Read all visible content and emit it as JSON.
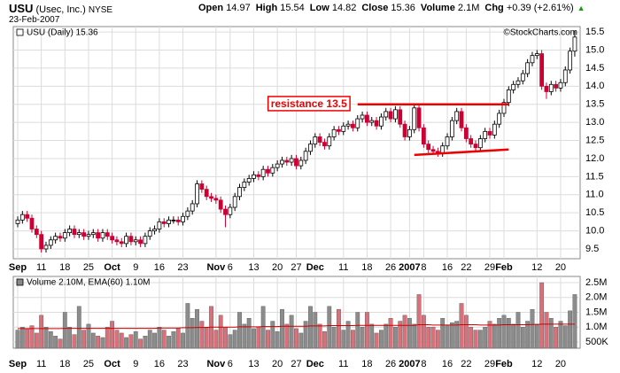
{
  "header": {
    "symbol": "USU",
    "company": "(Usec, Inc.)",
    "exchange": "NYSE",
    "date": "23-Feb-2007",
    "quote": [
      {
        "label": "Open",
        "value": "14.97"
      },
      {
        "label": "High",
        "value": "15.54"
      },
      {
        "label": "Low",
        "value": "14.82"
      },
      {
        "label": "Close",
        "value": "15.36"
      },
      {
        "label": "Volume",
        "value": "2.1M"
      },
      {
        "label": "Chg",
        "value": "+0.39 (+2.61%)"
      }
    ],
    "credit": "©StockCharts.com"
  },
  "chart_data": [
    {
      "type": "candlestick",
      "legend": "USU (Daily) 15.36",
      "up_color": "#000000",
      "down_color": "#cc0033",
      "grid": true,
      "categories": [
        "Sep",
        null,
        null,
        null,
        null,
        "11",
        null,
        null,
        null,
        null,
        "18",
        null,
        null,
        null,
        null,
        "25",
        null,
        null,
        null,
        null,
        "Oct",
        null,
        null,
        null,
        null,
        "9",
        null,
        null,
        null,
        null,
        "16",
        null,
        null,
        null,
        null,
        "23",
        null,
        null,
        null,
        null,
        null,
        null,
        "Nov",
        null,
        null,
        "6",
        null,
        null,
        null,
        null,
        "13",
        null,
        null,
        null,
        null,
        "20",
        null,
        null,
        null,
        "27",
        null,
        null,
        null,
        "Dec",
        null,
        null,
        null,
        null,
        null,
        "11",
        null,
        null,
        null,
        null,
        "18",
        null,
        null,
        null,
        null,
        "26",
        null,
        null,
        null,
        "2007",
        null,
        null,
        "8",
        null,
        null,
        null,
        null,
        "16",
        null,
        null,
        null,
        "22",
        null,
        null,
        null,
        null,
        "29",
        null,
        null,
        "Feb",
        null,
        null,
        null,
        null,
        null,
        null,
        "12",
        null,
        null,
        null,
        null,
        "20",
        null,
        null,
        null
      ],
      "open": [
        10.2,
        10.3,
        10.45,
        10.35,
        10.05,
        9.9,
        9.5,
        9.6,
        9.75,
        9.85,
        9.8,
        9.95,
        10.05,
        9.9,
        9.95,
        9.85,
        9.9,
        9.95,
        9.8,
        9.95,
        9.85,
        9.75,
        9.7,
        9.65,
        9.85,
        9.7,
        9.75,
        9.65,
        9.85,
        10.0,
        10.05,
        10.25,
        10.2,
        10.3,
        10.3,
        10.25,
        10.4,
        10.55,
        10.75,
        11.3,
        11.15,
        10.95,
        10.9,
        10.85,
        10.6,
        10.45,
        10.65,
        10.95,
        11.2,
        11.35,
        11.45,
        11.55,
        11.5,
        11.7,
        11.6,
        11.75,
        11.85,
        11.95,
        11.9,
        12.0,
        11.8,
        11.95,
        12.2,
        12.4,
        12.6,
        12.45,
        12.35,
        12.6,
        12.8,
        12.75,
        12.9,
        12.95,
        12.85,
        13.1,
        13.2,
        13.0,
        13.05,
        12.9,
        13.15,
        13.3,
        13.1,
        13.35,
        12.95,
        12.6,
        12.8,
        13.4,
        12.85,
        12.4,
        12.25,
        12.2,
        12.15,
        12.35,
        12.6,
        13.05,
        13.3,
        12.85,
        12.55,
        12.4,
        12.3,
        12.55,
        12.75,
        12.65,
        12.95,
        13.25,
        13.55,
        13.9,
        14.05,
        14.15,
        14.35,
        14.65,
        14.85,
        14.9,
        14.0,
        13.85,
        14.05,
        13.95,
        14.1,
        14.45,
        14.97
      ],
      "high": [
        10.4,
        10.55,
        10.55,
        10.45,
        10.15,
        10.0,
        9.7,
        9.85,
        9.95,
        9.95,
        10.05,
        10.15,
        10.15,
        10.05,
        10.05,
        10.0,
        10.05,
        10.05,
        10.05,
        10.05,
        9.95,
        9.85,
        9.8,
        9.95,
        9.95,
        9.85,
        9.85,
        9.95,
        10.1,
        10.15,
        10.35,
        10.35,
        10.4,
        10.4,
        10.4,
        10.5,
        10.65,
        10.85,
        11.4,
        11.4,
        11.25,
        11.05,
        11.0,
        10.95,
        10.7,
        10.75,
        11.05,
        11.3,
        11.45,
        11.55,
        11.65,
        11.65,
        11.8,
        11.8,
        11.85,
        11.95,
        12.05,
        12.05,
        12.1,
        12.1,
        12.05,
        12.3,
        12.5,
        12.7,
        12.7,
        12.55,
        12.7,
        12.9,
        12.9,
        13.0,
        13.05,
        13.05,
        13.2,
        13.3,
        13.3,
        13.15,
        13.15,
        13.25,
        13.4,
        13.4,
        13.45,
        13.45,
        13.05,
        12.9,
        13.5,
        13.5,
        12.95,
        12.5,
        12.35,
        12.3,
        12.45,
        12.7,
        13.15,
        13.4,
        13.4,
        12.95,
        12.65,
        12.5,
        12.65,
        12.85,
        12.85,
        13.05,
        13.35,
        13.65,
        14.0,
        14.15,
        14.25,
        14.45,
        14.75,
        14.95,
        15.0,
        15.0,
        14.1,
        14.15,
        14.15,
        14.2,
        14.55,
        15.07,
        15.54
      ],
      "low": [
        10.1,
        10.2,
        10.25,
        9.95,
        9.8,
        9.4,
        9.4,
        9.5,
        9.65,
        9.7,
        9.7,
        9.85,
        9.8,
        9.8,
        9.75,
        9.75,
        9.8,
        9.7,
        9.7,
        9.75,
        9.65,
        9.6,
        9.55,
        9.55,
        9.6,
        9.6,
        9.55,
        9.55,
        9.75,
        9.9,
        9.95,
        10.1,
        10.1,
        10.2,
        10.15,
        10.15,
        10.3,
        10.45,
        10.65,
        11.05,
        10.85,
        10.8,
        10.75,
        10.5,
        10.1,
        10.35,
        10.55,
        10.85,
        11.1,
        11.25,
        11.35,
        11.4,
        11.4,
        11.5,
        11.5,
        11.65,
        11.75,
        11.8,
        11.8,
        11.7,
        11.7,
        11.85,
        12.1,
        12.3,
        12.35,
        12.25,
        12.25,
        12.5,
        12.65,
        12.65,
        12.8,
        12.75,
        12.75,
        13.0,
        12.9,
        12.9,
        12.8,
        12.8,
        13.05,
        13.0,
        13.0,
        12.85,
        12.5,
        12.5,
        12.7,
        12.75,
        12.3,
        12.15,
        12.1,
        12.05,
        12.05,
        12.25,
        12.5,
        12.95,
        12.75,
        12.45,
        12.3,
        12.2,
        12.2,
        12.45,
        12.55,
        12.55,
        12.85,
        13.15,
        13.45,
        13.8,
        13.95,
        14.05,
        14.25,
        14.55,
        14.75,
        13.9,
        13.65,
        13.75,
        13.85,
        13.85,
        14.0,
        14.35,
        14.82
      ],
      "close": [
        10.3,
        10.45,
        10.35,
        10.05,
        9.9,
        9.5,
        9.6,
        9.75,
        9.85,
        9.8,
        9.95,
        10.05,
        9.9,
        9.95,
        9.85,
        9.9,
        9.95,
        9.8,
        9.95,
        9.85,
        9.75,
        9.7,
        9.65,
        9.85,
        9.7,
        9.75,
        9.65,
        9.85,
        10.0,
        10.05,
        10.25,
        10.2,
        10.3,
        10.3,
        10.25,
        10.4,
        10.55,
        10.75,
        11.3,
        11.15,
        10.95,
        10.9,
        10.85,
        10.6,
        10.45,
        10.65,
        10.95,
        11.2,
        11.35,
        11.45,
        11.55,
        11.5,
        11.7,
        11.6,
        11.75,
        11.85,
        11.95,
        11.9,
        12.0,
        11.8,
        11.95,
        12.2,
        12.4,
        12.6,
        12.45,
        12.35,
        12.6,
        12.8,
        12.75,
        12.9,
        12.95,
        12.85,
        13.1,
        13.2,
        13.0,
        13.05,
        12.9,
        13.15,
        13.3,
        13.1,
        13.35,
        12.95,
        12.6,
        12.8,
        13.4,
        12.85,
        12.4,
        12.25,
        12.2,
        12.15,
        12.35,
        12.6,
        13.05,
        13.3,
        12.85,
        12.55,
        12.4,
        12.3,
        12.55,
        12.75,
        12.65,
        12.95,
        13.25,
        13.55,
        13.9,
        14.05,
        14.15,
        14.35,
        14.65,
        14.85,
        14.9,
        14.0,
        13.85,
        14.05,
        13.95,
        14.1,
        14.45,
        14.97,
        15.36
      ],
      "ylim": [
        9.23,
        15.65
      ],
      "yticks": [
        9.5,
        {
          "value": 10,
          "label": "10.0"
        },
        10.5,
        {
          "value": 11,
          "label": "11.0"
        },
        11.5,
        {
          "value": 12,
          "label": "12.0"
        },
        12.5,
        {
          "value": 13,
          "label": "13.0"
        },
        13.5,
        {
          "value": 14,
          "label": "14.0"
        },
        14.5,
        {
          "value": 15,
          "label": "15.0"
        },
        15.5
      ],
      "annotations": [
        {
          "label": "resistance 13.5",
          "color": "#ee0000",
          "from": [
            72,
            13.5
          ],
          "to": [
            104,
            13.5
          ]
        },
        {
          "color": "#ee0000",
          "from": [
            84,
            12.1
          ],
          "to": [
            104,
            12.25
          ]
        }
      ]
    },
    {
      "type": "bar",
      "legend": "Volume 2.10M, EMA(60) 1.10M",
      "up_color": "#8c8c8c",
      "down_color": "#d9707a",
      "ema_color": "#cc0000",
      "volume": [
        900000,
        1000000,
        950000,
        1050000,
        800000,
        1400000,
        1000000,
        850000,
        700000,
        600000,
        1500000,
        1000000,
        750000,
        1700000,
        900000,
        1100000,
        800000,
        700000,
        650000,
        1000000,
        1200000,
        900000,
        800000,
        650000,
        750000,
        850000,
        600000,
        700000,
        900000,
        800000,
        1000000,
        900000,
        700000,
        850000,
        950000,
        800000,
        1800000,
        1300000,
        1600000,
        1200000,
        1000000,
        1700000,
        900000,
        1400000,
        1000000,
        750000,
        900000,
        1500000,
        1100000,
        1300000,
        950000,
        1000000,
        1700000,
        900000,
        1200000,
        850000,
        1600000,
        1100000,
        1400000,
        950000,
        800000,
        1200000,
        1700000,
        1500000,
        1100000,
        850000,
        1700000,
        1000000,
        1600000,
        900000,
        1200000,
        900000,
        1500000,
        1000000,
        1500000,
        1100000,
        800000,
        900000,
        1100000,
        1300000,
        1000000,
        1200000,
        1400000,
        1300000,
        1100000,
        2100000,
        1400000,
        1000000,
        1000000,
        900000,
        1300000,
        1050000,
        1150000,
        1200000,
        1800000,
        1400000,
        1000000,
        900000,
        900000,
        1000000,
        1200000,
        1100000,
        1300000,
        1400000,
        1300000,
        1100000,
        1500000,
        1000000,
        1200000,
        1600000,
        1100000,
        2500000,
        1500000,
        1300000,
        1000000,
        1200000,
        1050000,
        1550000,
        2100000
      ],
      "ema": [
        950000,
        950000,
        950000,
        950000,
        950000,
        950000,
        950000,
        950000,
        950000,
        950000,
        960000,
        960000,
        960000,
        960000,
        960000,
        960000,
        960000,
        960000,
        960000,
        960000,
        960000,
        960000,
        960000,
        960000,
        960000,
        960000,
        960000,
        960000,
        960000,
        960000,
        970000,
        970000,
        970000,
        970000,
        970000,
        980000,
        980000,
        980000,
        990000,
        990000,
        990000,
        1000000,
        1000000,
        1000000,
        1000000,
        1000000,
        1000000,
        1010000,
        1010000,
        1010000,
        1010000,
        1010000,
        1020000,
        1020000,
        1020000,
        1020000,
        1030000,
        1030000,
        1030000,
        1030000,
        1030000,
        1030000,
        1040000,
        1040000,
        1040000,
        1040000,
        1050000,
        1050000,
        1050000,
        1050000,
        1050000,
        1050000,
        1060000,
        1060000,
        1060000,
        1060000,
        1060000,
        1060000,
        1060000,
        1060000,
        1060000,
        1060000,
        1060000,
        1060000,
        1060000,
        1080000,
        1080000,
        1080000,
        1070000,
        1070000,
        1070000,
        1070000,
        1070000,
        1070000,
        1080000,
        1080000,
        1080000,
        1080000,
        1070000,
        1070000,
        1070000,
        1070000,
        1070000,
        1080000,
        1080000,
        1080000,
        1080000,
        1080000,
        1080000,
        1090000,
        1090000,
        1100000,
        1100000,
        1100000,
        1100000,
        1100000,
        1100000,
        1100000,
        1100000
      ],
      "ylim": [
        290000,
        2710000
      ],
      "yticks": [
        {
          "value": 500000,
          "label": "500K"
        },
        {
          "value": 1000000,
          "label": "1.0M"
        },
        {
          "value": 1500000,
          "label": "1.5M"
        },
        {
          "value": 2000000,
          "label": "2.0M"
        },
        {
          "value": 2500000,
          "label": "2.5M"
        }
      ]
    }
  ]
}
